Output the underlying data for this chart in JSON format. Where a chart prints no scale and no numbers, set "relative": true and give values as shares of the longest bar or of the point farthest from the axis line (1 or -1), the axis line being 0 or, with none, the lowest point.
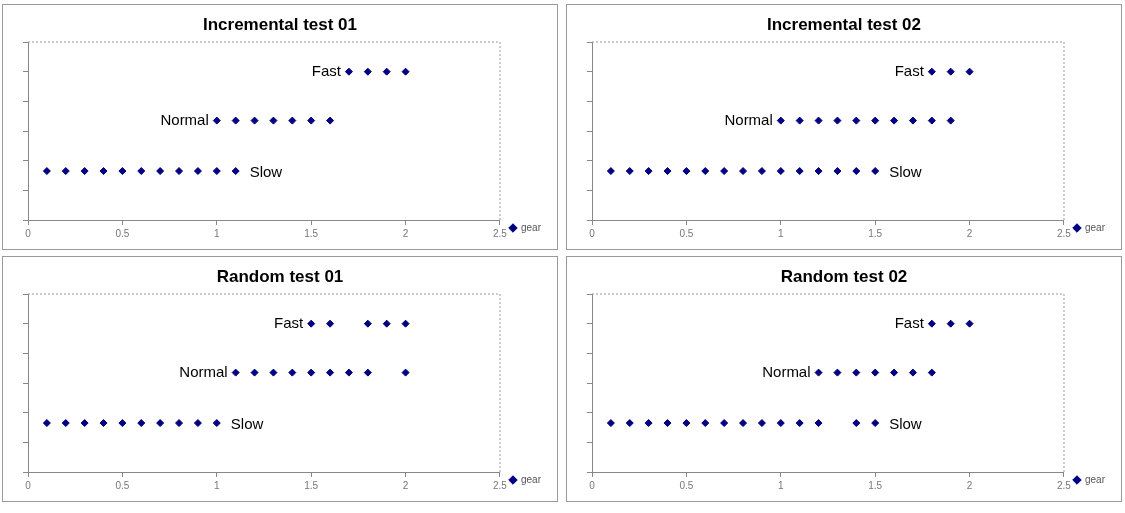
{
  "chart_data": [
    {
      "type": "scatter",
      "title": "Incremental test 01",
      "relative": true,
      "xlim": [
        0,
        2.5
      ],
      "xticks": [
        0,
        0.5,
        1,
        1.5,
        2,
        2.5
      ],
      "tick_labels": "x",
      "legend": "bottom right",
      "marker": "diamond",
      "series": [
        {
          "name": "gear",
          "color": "#000080",
          "x": [
            0.1,
            0.2,
            0.3,
            0.4,
            0.5,
            0.6,
            0.7,
            0.8,
            0.9,
            1.0,
            1.1,
            1.0,
            1.1,
            1.2,
            1.3,
            1.4,
            1.5,
            1.6,
            1.7,
            1.8,
            1.9,
            2.0
          ],
          "values": [
            0.33,
            0.33,
            0.33,
            0.33,
            0.33,
            0.33,
            0.33,
            0.33,
            0.33,
            0.33,
            0.33,
            0.67,
            0.67,
            0.67,
            0.67,
            0.67,
            0.67,
            0.67,
            1,
            1,
            1,
            1
          ]
        }
      ],
      "annotations": [
        {
          "text": "Fast",
          "x": 1.7,
          "y": 1
        },
        {
          "text": "Normal",
          "x": 1.0,
          "y": 0.67
        },
        {
          "text": "Slow",
          "x": 1.1,
          "y": 0.33
        }
      ]
    },
    {
      "type": "scatter",
      "title": "Incremental test 02",
      "relative": true,
      "xlim": [
        0,
        2.5
      ],
      "xticks": [
        0,
        0.5,
        1,
        1.5,
        2,
        2.5
      ],
      "tick_labels": "x",
      "legend": "bottom right",
      "marker": "diamond",
      "series": [
        {
          "name": "gear",
          "color": "#000080",
          "x": [
            0.1,
            0.2,
            0.3,
            0.4,
            0.5,
            0.6,
            0.7,
            0.8,
            0.9,
            1.0,
            1.1,
            1.2,
            1.3,
            1.4,
            1.5,
            1.0,
            1.1,
            1.2,
            1.3,
            1.4,
            1.5,
            1.6,
            1.7,
            1.8,
            1.9,
            1.8,
            1.9,
            2.0
          ],
          "values": [
            0.33,
            0.33,
            0.33,
            0.33,
            0.33,
            0.33,
            0.33,
            0.33,
            0.33,
            0.33,
            0.33,
            0.33,
            0.33,
            0.33,
            0.33,
            0.67,
            0.67,
            0.67,
            0.67,
            0.67,
            0.67,
            0.67,
            0.67,
            0.67,
            0.67,
            1,
            1,
            1
          ]
        }
      ],
      "annotations": [
        {
          "text": "Fast",
          "x": 1.8,
          "y": 1
        },
        {
          "text": "Normal",
          "x": 1.0,
          "y": 0.67
        },
        {
          "text": "Slow",
          "x": 1.5,
          "y": 0.33
        }
      ]
    },
    {
      "type": "scatter",
      "title": "Random test 01",
      "relative": true,
      "xlim": [
        0,
        2.5
      ],
      "xticks": [
        0,
        0.5,
        1,
        1.5,
        2,
        2.5
      ],
      "tick_labels": "x",
      "legend": "bottom right",
      "marker": "diamond",
      "series": [
        {
          "name": "gear",
          "color": "#000080",
          "x": [
            0.1,
            0.2,
            0.3,
            0.4,
            0.5,
            0.6,
            0.7,
            0.8,
            0.9,
            1.0,
            1.1,
            1.2,
            1.3,
            1.4,
            1.5,
            1.6,
            1.7,
            1.8,
            2.0,
            1.5,
            1.6,
            1.8,
            1.9,
            2.0
          ],
          "values": [
            0.33,
            0.33,
            0.33,
            0.33,
            0.33,
            0.33,
            0.33,
            0.33,
            0.33,
            0.33,
            0.67,
            0.67,
            0.67,
            0.67,
            0.67,
            0.67,
            0.67,
            0.67,
            0.67,
            1,
            1,
            1,
            1,
            1
          ]
        }
      ],
      "annotations": [
        {
          "text": "Fast",
          "x": 1.5,
          "y": 1
        },
        {
          "text": "Normal",
          "x": 1.1,
          "y": 0.67
        },
        {
          "text": "Slow",
          "x": 1.0,
          "y": 0.33
        }
      ]
    },
    {
      "type": "scatter",
      "title": "Random test 02",
      "relative": true,
      "xlim": [
        0,
        2.5
      ],
      "xticks": [
        0,
        0.5,
        1,
        1.5,
        2,
        2.5
      ],
      "tick_labels": "x",
      "legend": "bottom right",
      "marker": "diamond",
      "series": [
        {
          "name": "gear",
          "color": "#000080",
          "x": [
            0.1,
            0.2,
            0.3,
            0.4,
            0.5,
            0.6,
            0.7,
            0.8,
            0.9,
            1.0,
            1.1,
            1.2,
            1.4,
            1.5,
            1.2,
            1.3,
            1.4,
            1.5,
            1.6,
            1.7,
            1.8,
            1.8,
            1.9,
            2.0
          ],
          "values": [
            0.33,
            0.33,
            0.33,
            0.33,
            0.33,
            0.33,
            0.33,
            0.33,
            0.33,
            0.33,
            0.33,
            0.33,
            0.33,
            0.33,
            0.67,
            0.67,
            0.67,
            0.67,
            0.67,
            0.67,
            0.67,
            1,
            1,
            1
          ]
        }
      ],
      "annotations": [
        {
          "text": "Fast",
          "x": 1.8,
          "y": 1
        },
        {
          "text": "Normal",
          "x": 1.2,
          "y": 0.67
        },
        {
          "text": "Slow",
          "x": 1.5,
          "y": 0.33
        }
      ]
    }
  ]
}
